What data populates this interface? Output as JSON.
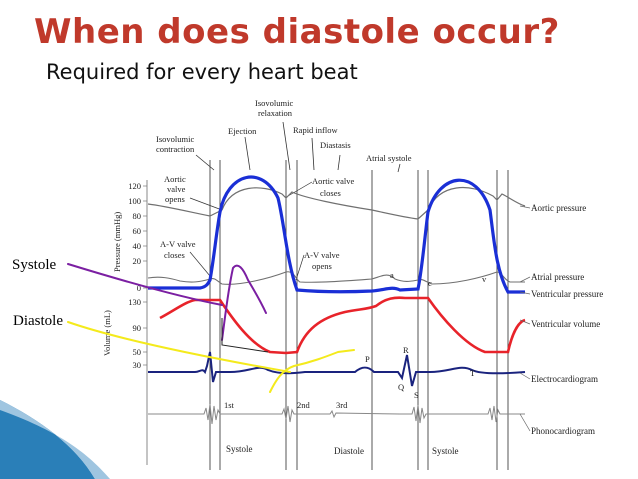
{
  "slide": {
    "title": "When does diastole occur?",
    "subtitle": "Required for every heart beat",
    "title_color": "#c0392b"
  },
  "annotations": {
    "systole": "Systole",
    "diastole": "Diastole",
    "systole_pen_color": "#7b1fa2",
    "diastole_pen_color": "#f4ea1c"
  },
  "diagram": {
    "phase_labels": {
      "isovolumic_contraction": [
        "Isovolumic",
        "contraction"
      ],
      "ejection": "Ejection",
      "isovolumic_relaxation": [
        "Isovolumic",
        "relaxation"
      ],
      "rapid_inflow": "Rapid inflow",
      "diastasis": "Diastasis",
      "atrial_systole": "Atrial systole"
    },
    "event_labels": {
      "aortic_valve_opens": [
        "Aortic",
        "valve",
        "opens"
      ],
      "aortic_valve_closes": [
        "Aortic valve",
        "closes"
      ],
      "av_valve_closes": [
        "A-V valve",
        "closes"
      ],
      "av_valve_opens": [
        "A-V valve",
        "opens"
      ]
    },
    "axis_labels": {
      "pressure": "Pressure (mmHg)",
      "volume": "Volume (mL)"
    },
    "pressure_ticks": [
      "120",
      "100",
      "80",
      "60",
      "40",
      "20",
      "0"
    ],
    "volume_ticks": [
      "130",
      "90",
      "50"
    ],
    "volume_extra_tick": "30",
    "trace_labels": {
      "aortic": "Aortic pressure",
      "atrial": "Atrial pressure",
      "ventricular_pressure": "Ventricular pressure",
      "ventricular_volume": "Ventricular volume",
      "ecg": "Electrocardiogram",
      "phono": "Phonocardiogram"
    },
    "wave_letters": {
      "a": "a",
      "c": "c",
      "v": "v",
      "P": "P",
      "Q": "Q",
      "R": "R",
      "S": "S",
      "T": "T"
    },
    "heart_sounds": [
      "1st",
      "2nd",
      "3rd"
    ],
    "bottom_phases": [
      "Systole",
      "Diastole",
      "Systole"
    ],
    "trace_colors": {
      "ventricular_pressure": "#1a2fd6",
      "ventricular_volume": "#e8232a",
      "ecg": "#1a237e",
      "aortic": "#6f6f6f",
      "atrial": "#6f6f6f"
    }
  }
}
